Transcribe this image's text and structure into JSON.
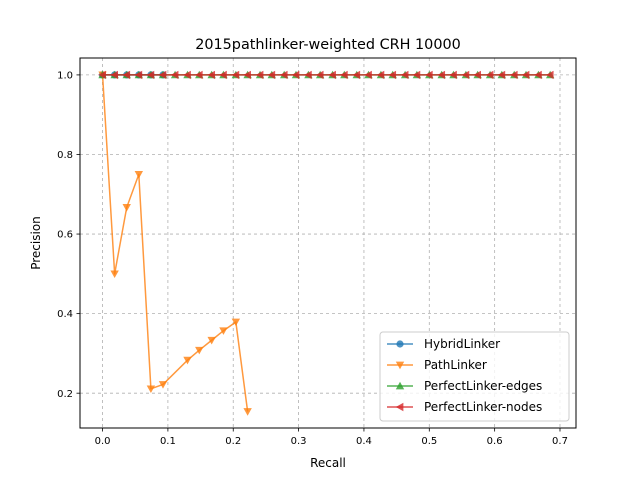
{
  "chart_data": {
    "type": "line",
    "title": "2015pathlinker-weighted CRH 10000",
    "xlabel": "Recall",
    "ylabel": "Precision",
    "xlim": [
      -0.0345,
      0.7245
    ],
    "ylim": [
      0.1125,
      1.0425
    ],
    "xticks": [
      0.0,
      0.1,
      0.2,
      0.3,
      0.4,
      0.5,
      0.6,
      0.7
    ],
    "xtick_labels": [
      "0.0",
      "0.1",
      "0.2",
      "0.3",
      "0.4",
      "0.5",
      "0.6",
      "0.7"
    ],
    "yticks": [
      0.2,
      0.4,
      0.6,
      0.8,
      1.0
    ],
    "ytick_labels": [
      "0.2",
      "0.4",
      "0.6",
      "0.8",
      "1.0"
    ],
    "grid": true,
    "legend_position": "lower-right",
    "series": [
      {
        "name": "HybridLinker",
        "color": "#1f77b4",
        "marker": "circle",
        "x": [
          0.0,
          0.0185,
          0.037,
          0.0555,
          0.074,
          0.0925
        ],
        "y": [
          1.0,
          1.0,
          1.0,
          1.0,
          1.0,
          1.0
        ]
      },
      {
        "name": "PathLinker",
        "color": "#ff7f0e",
        "marker": "triangle-down",
        "x": [
          0.0,
          0.0185,
          0.037,
          0.0555,
          0.074,
          0.0925,
          0.13,
          0.148,
          0.167,
          0.185,
          0.204,
          0.222
        ],
        "y": [
          1.0,
          0.5,
          0.667,
          0.75,
          0.211,
          0.222,
          0.283,
          0.308,
          0.333,
          0.357,
          0.379,
          0.154
        ]
      },
      {
        "name": "PerfectLinker-edges",
        "color": "#2ca02c",
        "marker": "triangle-up",
        "x": [
          0.0,
          0.0185,
          0.037,
          0.0555,
          0.074,
          0.0925,
          0.111,
          0.13,
          0.148,
          0.167,
          0.185,
          0.204,
          0.222,
          0.241,
          0.259,
          0.278,
          0.296,
          0.315,
          0.333,
          0.352,
          0.37,
          0.389,
          0.407,
          0.426,
          0.444,
          0.463,
          0.481,
          0.5,
          0.519,
          0.537,
          0.556,
          0.574,
          0.593,
          0.611,
          0.63,
          0.648,
          0.667,
          0.685
        ],
        "y": [
          1.0,
          1.0,
          1.0,
          1.0,
          1.0,
          1.0,
          1.0,
          1.0,
          1.0,
          1.0,
          1.0,
          1.0,
          1.0,
          1.0,
          1.0,
          1.0,
          1.0,
          1.0,
          1.0,
          1.0,
          1.0,
          1.0,
          1.0,
          1.0,
          1.0,
          1.0,
          1.0,
          1.0,
          1.0,
          1.0,
          1.0,
          1.0,
          1.0,
          1.0,
          1.0,
          1.0,
          1.0,
          1.0
        ]
      },
      {
        "name": "PerfectLinker-nodes",
        "color": "#d62728",
        "marker": "triangle-left",
        "x": [
          0.0,
          0.0185,
          0.037,
          0.0555,
          0.074,
          0.0925,
          0.111,
          0.13,
          0.148,
          0.167,
          0.185,
          0.204,
          0.222,
          0.241,
          0.259,
          0.278,
          0.296,
          0.315,
          0.333,
          0.352,
          0.37,
          0.389,
          0.407,
          0.426,
          0.444,
          0.463,
          0.481,
          0.5,
          0.519,
          0.537,
          0.556,
          0.574,
          0.593,
          0.611,
          0.63,
          0.648,
          0.667,
          0.685
        ],
        "y": [
          1.0,
          1.0,
          1.0,
          1.0,
          1.0,
          1.0,
          1.0,
          1.0,
          1.0,
          1.0,
          1.0,
          1.0,
          1.0,
          1.0,
          1.0,
          1.0,
          1.0,
          1.0,
          1.0,
          1.0,
          1.0,
          1.0,
          1.0,
          1.0,
          1.0,
          1.0,
          1.0,
          1.0,
          1.0,
          1.0,
          1.0,
          1.0,
          1.0,
          1.0,
          1.0,
          1.0,
          1.0,
          1.0
        ]
      }
    ]
  }
}
